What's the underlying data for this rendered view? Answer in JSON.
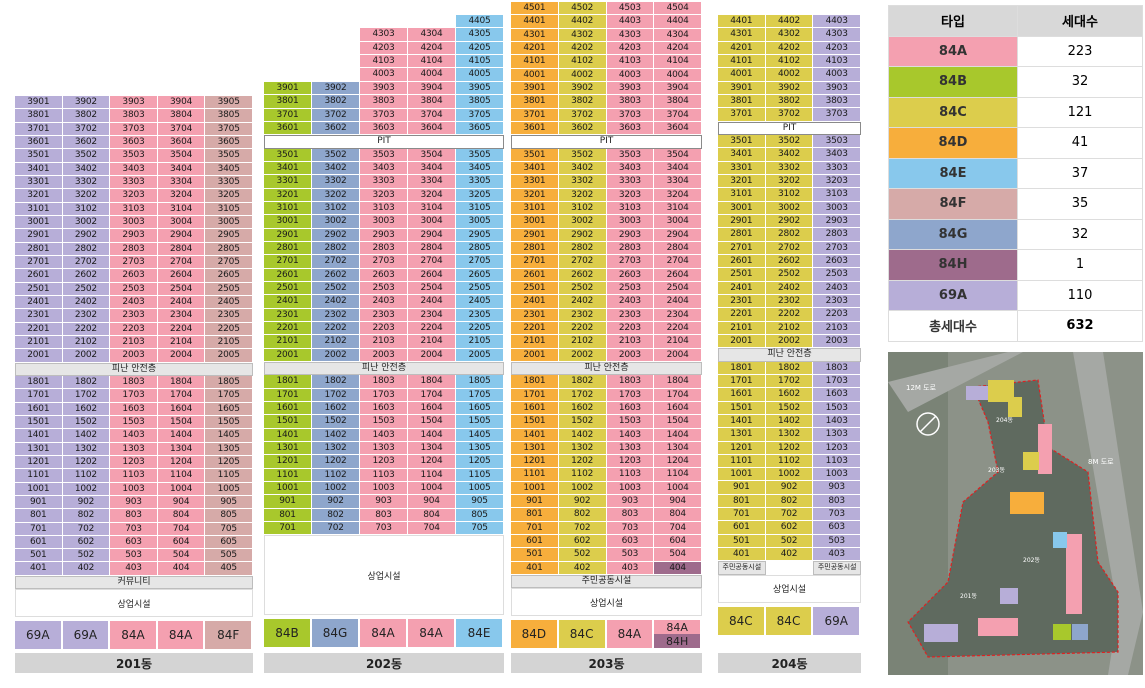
{
  "colors": {
    "84A": "#f4a0b0",
    "84B": "#a8c82c",
    "84C": "#dccd4c",
    "84D": "#f7ae3c",
    "84E": "#88c8ec",
    "84F": "#d6aaa8",
    "84G": "#8ea6cc",
    "84H": "#9e6b8c",
    "69A": "#b7aed8"
  },
  "labels": {
    "pit": "PIT",
    "refuge": "피난 안전층",
    "community": "커뮤니티",
    "commercial": "상업시설",
    "resident_facility": "주민공동시설"
  },
  "buildings": [
    {
      "name": "201동",
      "types": [
        "69A",
        "69A",
        "84A",
        "84A",
        "84F"
      ],
      "floors": {
        "top": 39,
        "refuge_between": [
          20,
          18
        ],
        "low": 4
      },
      "bottom_types": [
        "69A",
        "69A",
        "84A",
        "84A",
        "84F"
      ]
    },
    {
      "name": "202동",
      "types": [
        "84B",
        "84G",
        "84A",
        "84A",
        "84E"
      ],
      "floors": {
        "top": 44,
        "refuge_between": [
          20,
          18
        ],
        "low": 7
      },
      "bottom_types": [
        "84B",
        "84G",
        "84A",
        "84A",
        "84E"
      ]
    },
    {
      "name": "203동",
      "types": [
        "84D",
        "84C",
        "84A",
        "84A"
      ],
      "floors": {
        "top": 45,
        "refuge_between": [
          20,
          18
        ],
        "low": 4
      },
      "bottom_types": [
        "84D",
        "84C",
        "84A",
        "84A/84H"
      ]
    },
    {
      "name": "204동",
      "types": [
        "84C",
        "84C",
        "69A"
      ],
      "floors": {
        "top": 44,
        "refuge_between": [
          20,
          18
        ],
        "low": 4
      },
      "bottom_types": [
        "84C",
        "84C",
        "69A"
      ]
    }
  ],
  "legend": {
    "header": [
      "타입",
      "세대수"
    ],
    "rows": [
      {
        "type": "84A",
        "count": "223"
      },
      {
        "type": "84B",
        "count": "32"
      },
      {
        "type": "84C",
        "count": "121"
      },
      {
        "type": "84D",
        "count": "41"
      },
      {
        "type": "84E",
        "count": "37"
      },
      {
        "type": "84F",
        "count": "35"
      },
      {
        "type": "84G",
        "count": "32"
      },
      {
        "type": "84H",
        "count": "1"
      },
      {
        "type": "69A",
        "count": "110"
      }
    ],
    "total_label": "총세대수",
    "total": "632"
  },
  "sitemap": {
    "road_12m": "12M 도로",
    "road_8m": "8M 도로",
    "b201": "201동",
    "b202": "202동",
    "b203": "203동",
    "b204": "204동"
  }
}
